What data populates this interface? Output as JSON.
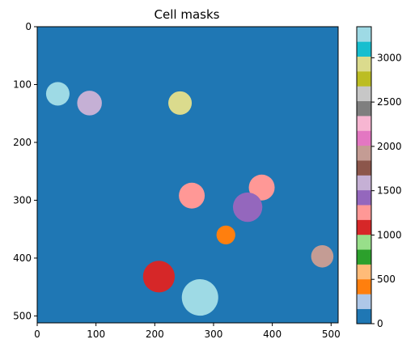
{
  "chart_data": {
    "type": "heatmap",
    "title": "Cell masks",
    "xlabel": "",
    "ylabel": "",
    "xlim": [
      0,
      512
    ],
    "ylim": [
      512,
      0
    ],
    "xticks": [
      0,
      100,
      200,
      300,
      400,
      500
    ],
    "yticks": [
      0,
      100,
      200,
      300,
      400,
      500
    ],
    "grid": false,
    "colormap": "tab20",
    "background": {
      "value": 0,
      "color": "#1f77b4"
    },
    "cells": [
      {
        "x": 35,
        "y": 116,
        "r": 20,
        "value": 3250,
        "color": "#9edae5"
      },
      {
        "x": 89,
        "y": 132,
        "r": 21,
        "value": 1700,
        "color": "#c5b0d5"
      },
      {
        "x": 243,
        "y": 132,
        "r": 20,
        "value": 2900,
        "color": "#dbdb8d"
      },
      {
        "x": 263,
        "y": 292,
        "r": 22,
        "value": 1300,
        "color": "#ff9896"
      },
      {
        "x": 382,
        "y": 278,
        "r": 22,
        "value": 1300,
        "color": "#ff9896"
      },
      {
        "x": 358,
        "y": 312,
        "r": 25,
        "value": 1550,
        "color": "#9467bd"
      },
      {
        "x": 321,
        "y": 360,
        "r": 16,
        "value": 500,
        "color": "#ff7f0e"
      },
      {
        "x": 485,
        "y": 397,
        "r": 19,
        "value": 2000,
        "color": "#c49c94"
      },
      {
        "x": 207,
        "y": 432,
        "r": 27,
        "value": 1100,
        "color": "#d62728"
      },
      {
        "x": 277,
        "y": 468,
        "r": 31,
        "value": 3250,
        "color": "#9edae5"
      }
    ],
    "colorbar": {
      "ticks": [
        0,
        500,
        1000,
        1500,
        2000,
        2500,
        3000
      ],
      "min": 0,
      "max": 3350,
      "colors": [
        "#1f77b4",
        "#aec7e8",
        "#ff7f0e",
        "#ffbb78",
        "#2ca02c",
        "#98df8a",
        "#d62728",
        "#ff9896",
        "#9467bd",
        "#c5b0d5",
        "#8c564b",
        "#c49c94",
        "#e377c2",
        "#f7b6d2",
        "#7f7f7f",
        "#c7c7c7",
        "#bcbd22",
        "#dbdb8d",
        "#17becf",
        "#9edae5"
      ]
    }
  }
}
